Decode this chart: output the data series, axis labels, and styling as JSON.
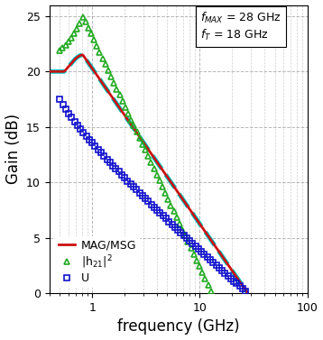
{
  "title": "",
  "xlabel": "frequency (GHz)",
  "ylabel": "Gain (dB)",
  "xlim": [
    0.4,
    100
  ],
  "ylim": [
    0,
    26
  ],
  "yticks": [
    0,
    5,
    10,
    15,
    20,
    25
  ],
  "fmax": 28,
  "fT": 18,
  "legend_labels": [
    "|h$_{21}$|$^2$",
    "MAG/MSG",
    "U"
  ],
  "h21_color": "#22aa22",
  "mag_color": "#cc1111",
  "mag_bg_color": "#00cccc",
  "U_color": "#1111cc",
  "grid_color": "#888888",
  "background": "#ffffff"
}
